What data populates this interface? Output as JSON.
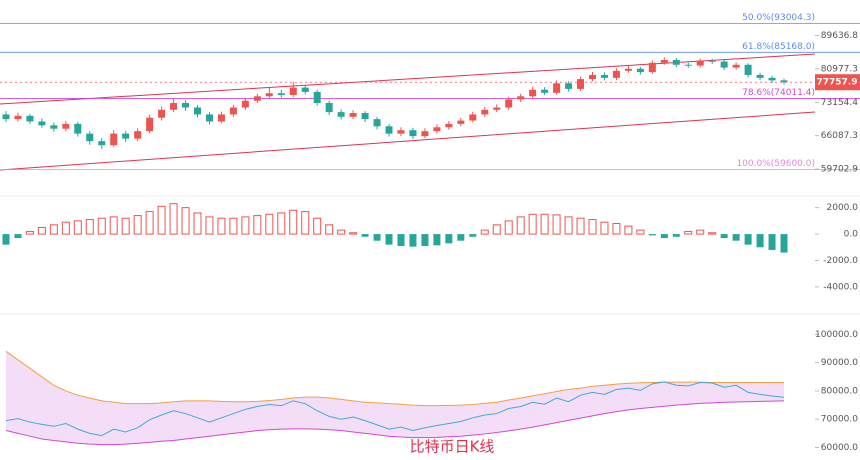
{
  "chart_data": [
    {
      "type": "candlestick",
      "log": true,
      "ylim": [
        55850,
        98650
      ],
      "yticks": [
        89636.8,
        80977.3,
        73154.4,
        66087.3,
        59702.9
      ],
      "up_color": "#ef5350",
      "down_color": "#26a69a",
      "levels": [
        {
          "value": 93004.3,
          "label": "50.0%(93004.3)",
          "color": "#5b8def"
        },
        {
          "value": 85168.0,
          "label": "61.8%(85168.0)",
          "color": "#5b8def"
        },
        {
          "value": 74011.4,
          "label": "78.6%(74011.4)",
          "color": "#d048d6"
        },
        {
          "value": 59600.0,
          "label": "100.0%(59600.0)",
          "color": "#e58ad6"
        }
      ],
      "open": [
        70500,
        69500,
        70200,
        69000,
        68200,
        67500,
        68500,
        66500,
        65000,
        64200,
        66500,
        65500,
        67000,
        69800,
        71500,
        73000,
        72000,
        70500,
        69000,
        70500,
        72000,
        73500,
        74500,
        75200,
        74800,
        76500,
        75500,
        73000,
        71000,
        70000,
        70800,
        69500,
        68000,
        66500,
        67200,
        66000,
        67000,
        67800,
        68500,
        69200,
        70500,
        71500,
        72000,
        73800,
        74500,
        76000,
        75300,
        77500,
        76200,
        78500,
        79500,
        78800,
        80500,
        81000,
        80200,
        82500,
        83200,
        82000,
        81800,
        83000,
        82800,
        81300,
        82000,
        79500,
        78800,
        78200
      ],
      "high": [
        71200,
        70900,
        70600,
        69600,
        68800,
        69100,
        68900,
        67000,
        65600,
        67200,
        67000,
        67600,
        70400,
        72200,
        73900,
        73600,
        72500,
        71000,
        71100,
        72600,
        74100,
        75100,
        76600,
        76000,
        77800,
        77000,
        76000,
        73500,
        71600,
        71400,
        71200,
        70000,
        68500,
        67800,
        67700,
        67600,
        68400,
        69100,
        69800,
        71100,
        72100,
        72700,
        74400,
        75100,
        76700,
        76600,
        78200,
        78000,
        79100,
        80200,
        80100,
        81100,
        81700,
        81500,
        83100,
        83900,
        83700,
        82600,
        83600,
        83500,
        83200,
        82600,
        82400,
        80000,
        79300,
        78600
      ],
      "low": [
        68900,
        69000,
        68500,
        67700,
        66900,
        67000,
        65900,
        64300,
        63500,
        63900,
        64800,
        65000,
        66600,
        69200,
        71000,
        71300,
        69900,
        68400,
        68600,
        70000,
        71500,
        73000,
        74000,
        74200,
        74300,
        74900,
        72400,
        70400,
        69400,
        69500,
        68900,
        67400,
        65900,
        66000,
        65400,
        65600,
        66500,
        67300,
        68000,
        68800,
        70000,
        71000,
        71500,
        73200,
        74000,
        74800,
        74900,
        75600,
        75800,
        78000,
        78200,
        78300,
        80000,
        79600,
        79800,
        82000,
        81400,
        81200,
        81300,
        82200,
        80700,
        80800,
        78900,
        78200,
        77600,
        77200
      ],
      "close": [
        69500,
        70200,
        69000,
        68200,
        67500,
        68500,
        66500,
        65000,
        64200,
        66500,
        65500,
        67000,
        69800,
        71500,
        73000,
        72000,
        70500,
        69000,
        70500,
        72000,
        73500,
        74500,
        75200,
        74800,
        76500,
        75500,
        73000,
        71000,
        70000,
        70800,
        69500,
        68000,
        66500,
        67200,
        66000,
        67000,
        67800,
        68500,
        69200,
        70500,
        71500,
        72000,
        73800,
        74500,
        76000,
        75300,
        77500,
        76200,
        78500,
        79500,
        78800,
        80500,
        81000,
        80200,
        82500,
        83200,
        82000,
        81800,
        83000,
        82800,
        81300,
        82000,
        79500,
        78800,
        78200,
        77757.9
      ]
    },
    {
      "type": "bar",
      "ylim": [
        -5745,
        2580
      ],
      "yticks": [
        {
          "value": 2000,
          "label": "2000.0"
        },
        {
          "value": 0,
          "label": "0.0"
        },
        {
          "value": -2000,
          "label": "-2000.0"
        },
        {
          "value": -4000,
          "label": "-4000.0"
        }
      ],
      "up_color": "#ef5350",
      "down_color": "#26a69a",
      "values": [
        -800,
        -300,
        200,
        500,
        700,
        900,
        1000,
        1100,
        1200,
        1300,
        1200,
        1400,
        1700,
        2100,
        2300,
        2000,
        1600,
        1300,
        1200,
        1200,
        1300,
        1400,
        1500,
        1600,
        1800,
        1700,
        1200,
        700,
        300,
        100,
        -200,
        -500,
        -800,
        -900,
        -950,
        -900,
        -850,
        -700,
        -500,
        -200,
        300,
        700,
        1000,
        1300,
        1500,
        1500,
        1450,
        1300,
        1200,
        1100,
        900,
        800,
        600,
        300,
        -100,
        -300,
        -200,
        200,
        300,
        100,
        -300,
        -500,
        -800,
        -1000,
        -1200,
        -1400
      ]
    },
    {
      "type": "band",
      "ylim": [
        57000,
        103667
      ],
      "yticks": [
        {
          "value": 100000,
          "label": "100000.0"
        },
        {
          "value": 90000,
          "label": "90000.0"
        },
        {
          "value": 80000,
          "label": "80000.0"
        },
        {
          "value": 70000,
          "label": "70000.0"
        },
        {
          "value": 60000,
          "label": "60000.0"
        }
      ],
      "fill": "#f1d6f5",
      "line_color": "#3fa9d8",
      "series": [
        {
          "color": "#f0a040",
          "values": [
            94000,
            91000,
            88000,
            85000,
            82000,
            80000,
            78500,
            77500,
            76500,
            76000,
            75500,
            75500,
            75500,
            75800,
            76200,
            76500,
            76500,
            76500,
            76300,
            76200,
            76200,
            76300,
            76600,
            77000,
            77500,
            77800,
            77800,
            77500,
            77000,
            76500,
            76000,
            75800,
            75500,
            75300,
            75000,
            74800,
            74800,
            74900,
            75000,
            75200,
            75600,
            76000,
            76800,
            77500,
            78300,
            79000,
            79800,
            80500,
            81000,
            81600,
            82000,
            82400,
            82700,
            82900,
            83000,
            83100,
            83100,
            83100,
            83100,
            83000,
            83000,
            83000,
            83000,
            83000,
            83000,
            83000
          ]
        },
        {
          "color": "#d048d6",
          "values": [
            66000,
            65000,
            64000,
            63000,
            62500,
            62000,
            61500,
            61200,
            61000,
            61000,
            61200,
            61500,
            61800,
            62200,
            62500,
            63000,
            63500,
            64000,
            64500,
            65000,
            65500,
            66000,
            66300,
            66500,
            66600,
            66600,
            66500,
            66300,
            66000,
            65500,
            65000,
            64500,
            64000,
            63700,
            63500,
            63500,
            63600,
            63800,
            64000,
            64400,
            64800,
            65300,
            65900,
            66500,
            67200,
            68000,
            68800,
            69600,
            70400,
            71200,
            72000,
            72700,
            73300,
            73800,
            74200,
            74600,
            75000,
            75300,
            75600,
            75800,
            76000,
            76100,
            76200,
            76300,
            76400,
            76500
          ]
        }
      ],
      "caption": "比特币日K线"
    }
  ]
}
